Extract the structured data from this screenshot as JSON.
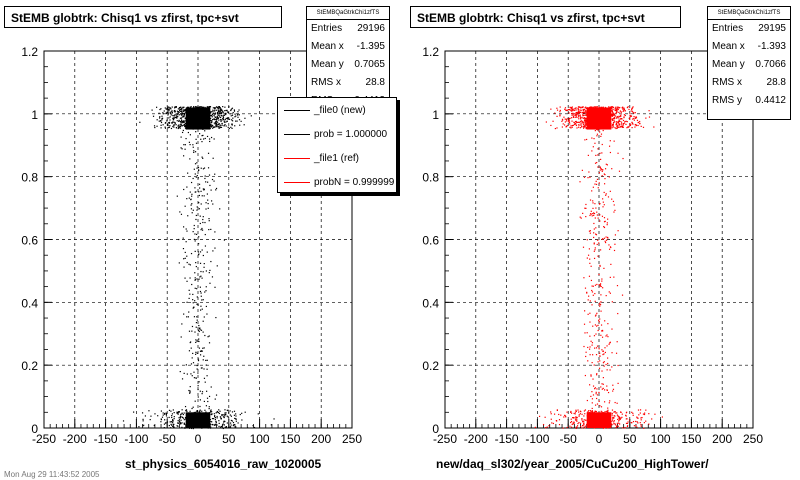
{
  "chart_data": [
    {
      "type": "scatter",
      "title": "StEMB globtrk: Chisq1 vs zfirst, tpc+svt",
      "xlabel": "st_physics_6054016_raw_1020005",
      "ylabel": "",
      "xlim": [
        -250,
        250
      ],
      "ylim": [
        0,
        1.2
      ],
      "xticks": [
        "-250",
        "-200",
        "-150",
        "-100",
        "-50",
        "0",
        "50",
        "100",
        "150",
        "200",
        "250"
      ],
      "yticks": [
        "0",
        "0.2",
        "0.4",
        "0.6",
        "0.8",
        "1",
        "1.2"
      ],
      "grid": true,
      "color": "#000000",
      "stats": {
        "name": "StEMBQaGtrkChi1zfTS",
        "rows": [
          {
            "label": "Entries",
            "value": "29196"
          },
          {
            "label": "Mean x",
            "value": "-1.395"
          },
          {
            "label": "Mean y",
            "value": "0.7065"
          },
          {
            "label": "RMS x",
            "value": "28.8"
          },
          {
            "label": "RMS y",
            "value": "0.4412"
          }
        ]
      },
      "legend": [
        {
          "label": "_file0 (new)",
          "color": "#000000"
        },
        {
          "label": "prob = 1.000000",
          "color": "#000000"
        },
        {
          "label": "_file1 (ref)",
          "color": "#ff0000"
        },
        {
          "label": "probN = 0.999999",
          "color": "#ff0000"
        }
      ],
      "legend_placement": "top-right",
      "clusters": [
        {
          "x": [
            -20,
            20
          ],
          "y": [
            0.95,
            1.02
          ],
          "desc": "dense block"
        },
        {
          "x": [
            -20,
            20
          ],
          "y": [
            0.0,
            0.05
          ],
          "desc": "dense block"
        }
      ]
    },
    {
      "type": "scatter",
      "title": "StEMB globtrk: Chisq1 vs zfirst, tpc+svt",
      "xlabel": "new/daq_sl302/year_2005/CuCu200_HighTower/",
      "ylabel": "",
      "xlim": [
        -250,
        250
      ],
      "ylim": [
        0,
        1.2
      ],
      "xticks": [
        "-250",
        "-200",
        "-150",
        "-100",
        "-50",
        "0",
        "50",
        "100",
        "150",
        "200",
        "250"
      ],
      "yticks": [
        "0",
        "0.2",
        "0.4",
        "0.6",
        "0.8",
        "1",
        "1.2"
      ],
      "grid": true,
      "color": "#ff0000",
      "stats": {
        "name": "StEMBQaGtrkChi1zfTS",
        "rows": [
          {
            "label": "Entries",
            "value": "29195"
          },
          {
            "label": "Mean x",
            "value": "-1.393"
          },
          {
            "label": "Mean y",
            "value": "0.7066"
          },
          {
            "label": "RMS x",
            "value": "28.8"
          },
          {
            "label": "RMS y",
            "value": "0.4412"
          }
        ]
      },
      "clusters": [
        {
          "x": [
            -20,
            20
          ],
          "y": [
            0.95,
            1.02
          ],
          "desc": "dense block"
        },
        {
          "x": [
            -20,
            20
          ],
          "y": [
            0.0,
            0.05
          ],
          "desc": "dense block"
        }
      ]
    }
  ],
  "footer": "Mon Aug 29 11:43:52 2005"
}
